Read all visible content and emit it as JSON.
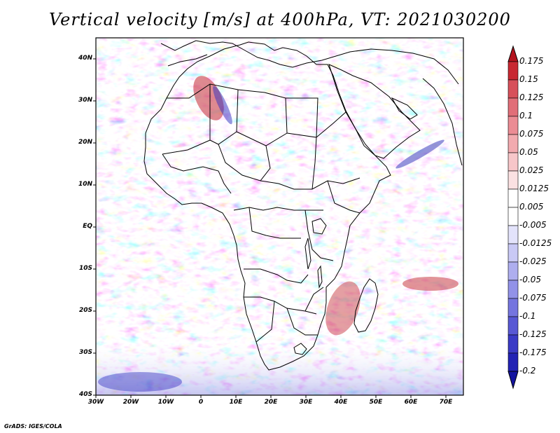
{
  "title": "Vertical velocity [m/s] at 400hPa, VT: 2021030200",
  "credit": "GrADS: IGES/COLA",
  "y_axis": {
    "labels": [
      "40N",
      "30N",
      "20N",
      "10N",
      "EQ",
      "10S",
      "20S",
      "30S",
      "40S"
    ]
  },
  "x_axis": {
    "labels": [
      "30W",
      "20W",
      "10W",
      "0",
      "10E",
      "20E",
      "30E",
      "40E",
      "50E",
      "60E",
      "70E"
    ]
  },
  "colorbar": {
    "labels": [
      "0.175",
      "0.15",
      "0.125",
      "0.1",
      "0.075",
      "0.05",
      "0.025",
      "0.0125",
      "0.005",
      "-0.005",
      "-0.0125",
      "-0.025",
      "-0.05",
      "-0.075",
      "-0.1",
      "-0.125",
      "-0.175",
      "-0.2"
    ],
    "colors": [
      "#b4141e",
      "#c82832",
      "#d7505a",
      "#e16e78",
      "#eb8c94",
      "#f2aaaf",
      "#f7c6c9",
      "#fbe1e2",
      "#ffffff",
      "#ffffff",
      "#e3e3fb",
      "#c9c9f5",
      "#aeaeef",
      "#9292e8",
      "#7575df",
      "#5858d4",
      "#3a3ac6",
      "#2222b4",
      "#1414a0"
    ]
  },
  "map_extent": {
    "lon": [
      -30,
      75
    ],
    "lat": [
      -40,
      45
    ]
  }
}
